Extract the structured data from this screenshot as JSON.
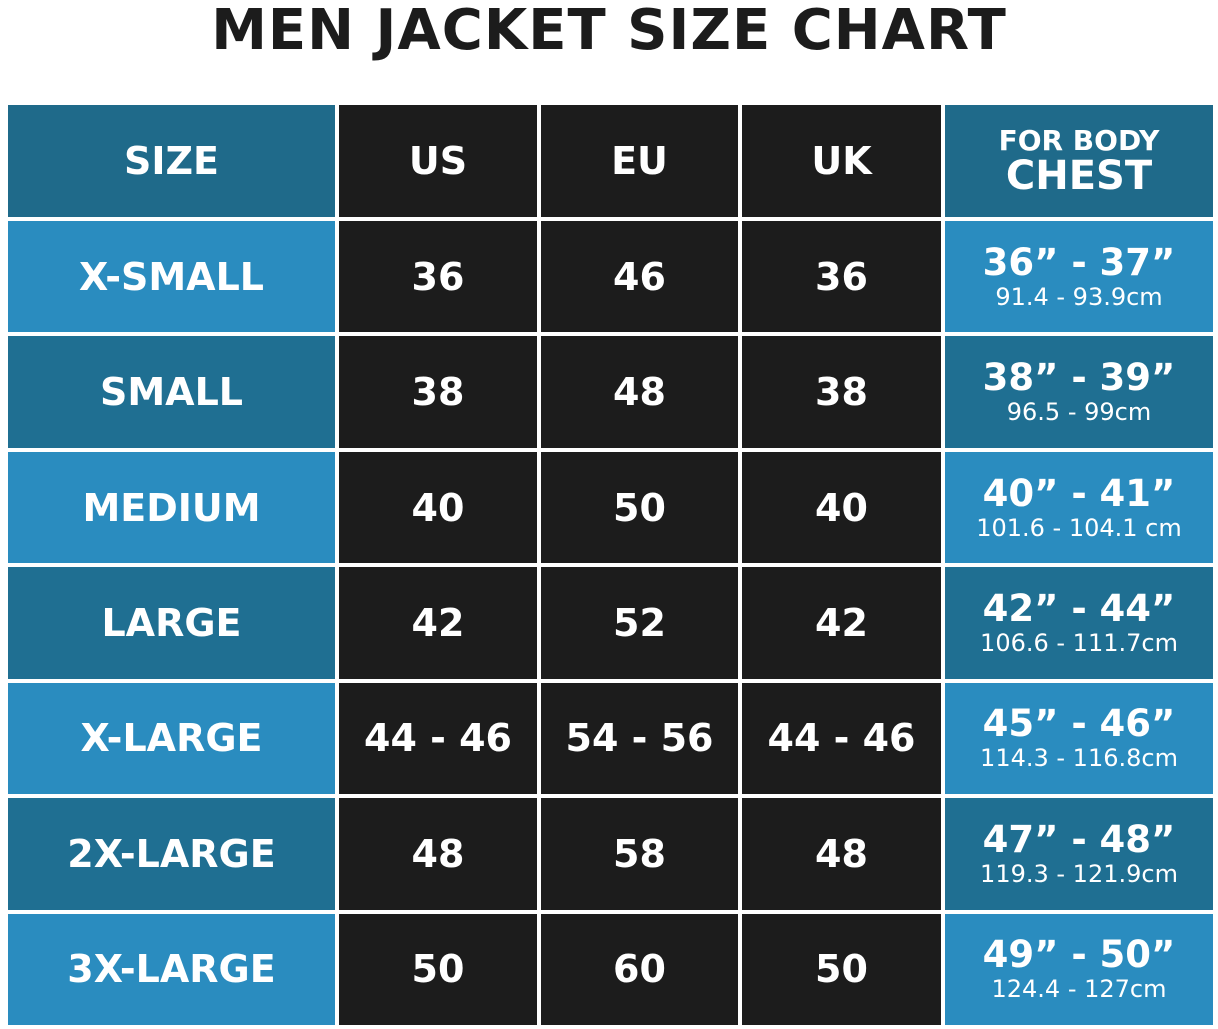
{
  "title": "MEN JACKET SIZE CHART",
  "colors": {
    "header": "#1f6a8a",
    "row_light": "#2a8cbf",
    "row_dark": "#1f6f92",
    "black_cell": "#1c1c1c"
  },
  "chart_data": {
    "type": "table",
    "title": "MEN JACKET SIZE CHART",
    "headers": [
      "SIZE",
      "US",
      "EU",
      "UK",
      [
        "FOR BODY",
        "CHEST"
      ]
    ],
    "rows": [
      {
        "size": "X-SMALL",
        "us": "36",
        "eu": "46",
        "uk": "36",
        "chest_in": "36” - 37”",
        "chest_cm": "91.4 - 93.9cm"
      },
      {
        "size": "SMALL",
        "us": "38",
        "eu": "48",
        "uk": "38",
        "chest_in": "38” - 39”",
        "chest_cm": "96.5 - 99cm"
      },
      {
        "size": "MEDIUM",
        "us": "40",
        "eu": "50",
        "uk": "40",
        "chest_in": "40” - 41”",
        "chest_cm": "101.6 - 104.1 cm"
      },
      {
        "size": "LARGE",
        "us": "42",
        "eu": "52",
        "uk": "42",
        "chest_in": "42” - 44”",
        "chest_cm": "106.6 - 111.7cm"
      },
      {
        "size": "X-LARGE",
        "us": "44 - 46",
        "eu": "54 - 56",
        "uk": "44 - 46",
        "chest_in": "45” - 46”",
        "chest_cm": "114.3 - 116.8cm"
      },
      {
        "size": "2X-LARGE",
        "us": "48",
        "eu": "58",
        "uk": "48",
        "chest_in": "47” - 48”",
        "chest_cm": "119.3 - 121.9cm"
      },
      {
        "size": "3X-LARGE",
        "us": "50",
        "eu": "60",
        "uk": "50",
        "chest_in": "49” - 50”",
        "chest_cm": "124.4 - 127cm"
      }
    ]
  }
}
